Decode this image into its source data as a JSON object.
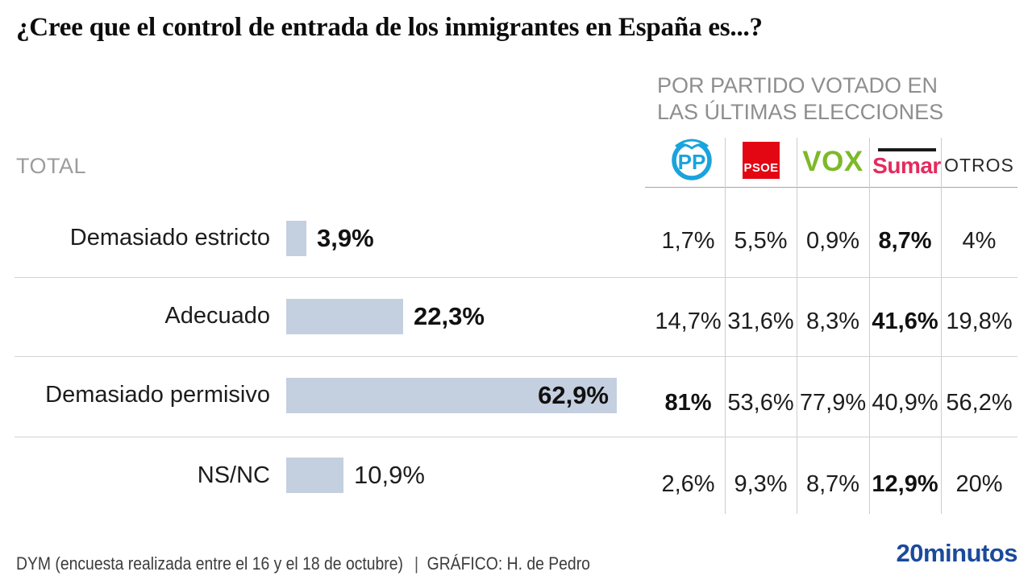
{
  "title": "¿Cree que el control de entrada de los inmigrantes en España es...?",
  "party_header": {
    "line1": "POR PARTIDO VOTADO EN",
    "line2": "LAS ÚLTIMAS ELECCIONES"
  },
  "total_label": "TOTAL",
  "parties": [
    {
      "name": "PP",
      "color": "#1aa3dc"
    },
    {
      "name": "PSOE",
      "color": "#e30613"
    },
    {
      "name": "VOX",
      "color": "#7db928"
    },
    {
      "name": "Sumar",
      "color": "#e52a5c"
    },
    {
      "name": "OTROS",
      "color": "#2a2a2a"
    }
  ],
  "rows": [
    {
      "label": "Demasiado estricto",
      "total": {
        "text": "3,9%",
        "value": 3.9,
        "bold": true
      },
      "cells": [
        {
          "text": "1,7%",
          "bold": false
        },
        {
          "text": "5,5%",
          "bold": false
        },
        {
          "text": "0,9%",
          "bold": false
        },
        {
          "text": "8,7%",
          "bold": true
        },
        {
          "text": "4%",
          "bold": false
        }
      ]
    },
    {
      "label": "Adecuado",
      "total": {
        "text": "22,3%",
        "value": 22.3,
        "bold": true
      },
      "cells": [
        {
          "text": "14,7%",
          "bold": false
        },
        {
          "text": "31,6%",
          "bold": false
        },
        {
          "text": "8,3%",
          "bold": false
        },
        {
          "text": "41,6%",
          "bold": true
        },
        {
          "text": "19,8%",
          "bold": false
        }
      ]
    },
    {
      "label": "Demasiado permisivo",
      "total": {
        "text": "62,9%",
        "value": 62.9,
        "bold": true
      },
      "cells": [
        {
          "text": "81%",
          "bold": true
        },
        {
          "text": "53,6%",
          "bold": false
        },
        {
          "text": "77,9%",
          "bold": false
        },
        {
          "text": "40,9%",
          "bold": false
        },
        {
          "text": "56,2%",
          "bold": false
        }
      ]
    },
    {
      "label": "NS/NC",
      "total": {
        "text": "10,9%",
        "value": 10.9,
        "bold": false
      },
      "cells": [
        {
          "text": "2,6%",
          "bold": false
        },
        {
          "text": "9,3%",
          "bold": false
        },
        {
          "text": "8,7%",
          "bold": false
        },
        {
          "text": "12,9%",
          "bold": true
        },
        {
          "text": "20%",
          "bold": false
        }
      ]
    }
  ],
  "footer": {
    "source": "DYM (encuesta realizada entre el 16 y el 18 de octubre)",
    "divider": "|",
    "credit": "GRÁFICO: H. de Pedro",
    "logo": "20minutos",
    "logo_color": "#1b4a9b"
  },
  "colors": {
    "bar": "#c4cfe0"
  },
  "chart_data": {
    "type": "bar",
    "orientation": "horizontal",
    "title": "¿Cree que el control de entrada de los inmigrantes en España es...?",
    "subtitle": "POR PARTIDO VOTADO EN LAS ÚLTIMAS ELECCIONES",
    "categories": [
      "Demasiado estricto",
      "Adecuado",
      "Demasiado permisivo",
      "NS/NC"
    ],
    "series": [
      {
        "name": "TOTAL",
        "values": [
          3.9,
          22.3,
          62.9,
          10.9
        ]
      },
      {
        "name": "PP",
        "values": [
          1.7,
          14.7,
          81,
          2.6
        ]
      },
      {
        "name": "PSOE",
        "values": [
          5.5,
          31.6,
          53.6,
          9.3
        ]
      },
      {
        "name": "VOX",
        "values": [
          0.9,
          8.3,
          77.9,
          8.7
        ]
      },
      {
        "name": "Sumar",
        "values": [
          8.7,
          41.6,
          40.9,
          12.9
        ]
      },
      {
        "name": "OTROS",
        "values": [
          4,
          19.8,
          56.2,
          20
        ]
      }
    ],
    "value_suffix": "%",
    "xlim": [
      0,
      100
    ],
    "grid": false,
    "bar_color": "#c4cfe0",
    "source": "DYM (encuesta realizada entre el 16 y el 18 de octubre)"
  }
}
